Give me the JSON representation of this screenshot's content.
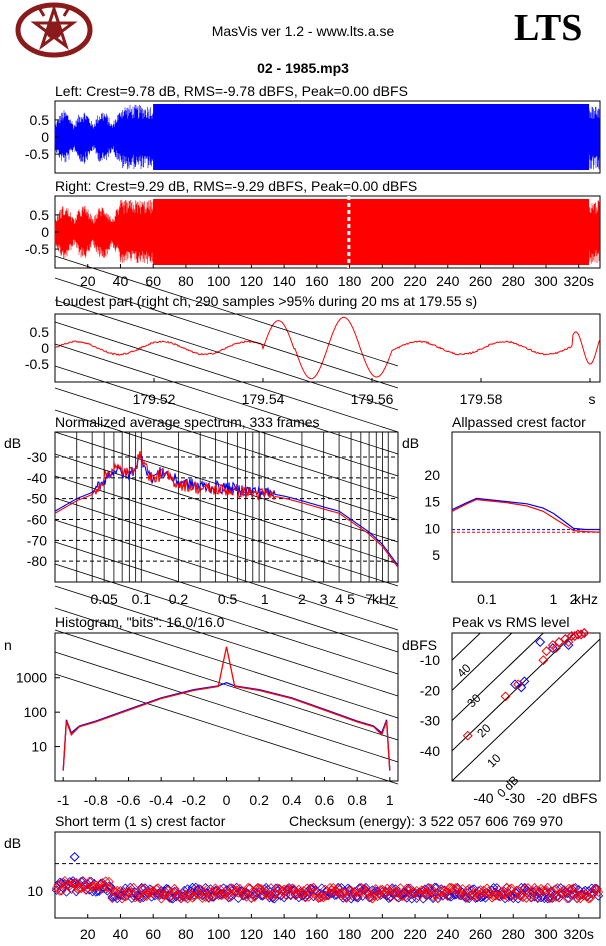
{
  "header": {
    "app_title": "MasVis ver 1.2 - www.lts.a.se",
    "brand": "LTS",
    "file_name": "02 - 1985.mp3",
    "logo": "pentagram-logo"
  },
  "chart_data": [
    {
      "id": "left",
      "type": "line",
      "title": "Left: Crest=9.78 dB, RMS=-9.78 dBFS, Peak=0.00 dBFS",
      "color": "#0000ff",
      "yticks": [
        "0.5",
        "0",
        "-0.5"
      ],
      "ylim": [
        -1,
        1
      ],
      "xlim": [
        0,
        333
      ]
    },
    {
      "id": "right",
      "type": "line",
      "title": "Right: Crest=9.29 dB, RMS=-9.29 dBFS, Peak=0.00 dBFS",
      "color": "#ff0000",
      "yticks": [
        "0.5",
        "0",
        "-0.5"
      ],
      "xticks": [
        "20",
        "40",
        "60",
        "80",
        "100",
        "120",
        "140",
        "160",
        "180",
        "200",
        "220",
        "240",
        "260",
        "280",
        "300",
        "320s"
      ],
      "ylim": [
        -1,
        1
      ],
      "xlim": [
        0,
        333
      ],
      "marker_x": 179.55
    },
    {
      "id": "loudest",
      "type": "line",
      "title": "Loudest part (right ch, 290 samples >95% during 20 ms at 179.55 s)",
      "color": "#ff0000",
      "yticks": [
        "0.5",
        "0",
        "-0.5"
      ],
      "xticks": [
        "179.52",
        "179.54",
        "179.56",
        "179.58",
        "s"
      ],
      "xlim": [
        179.5,
        179.6
      ],
      "ylim": [
        -1,
        1
      ]
    },
    {
      "id": "spectrum",
      "type": "line",
      "title": "Normalized average spectrum, 333 frames",
      "ylabel": "dB",
      "yticks": [
        "-30",
        "-40",
        "-50",
        "-60",
        "-70",
        "-80"
      ],
      "xticks": [
        "0.05",
        "0.1",
        "0.2",
        "0.5",
        "1",
        "2",
        "3",
        "4",
        "5",
        "7",
        "kHz"
      ],
      "ylim": [
        -90,
        -18
      ],
      "xlim_khz": [
        0.02,
        12
      ],
      "series": [
        {
          "color": "#0000ff",
          "x": [
            0.02,
            0.03,
            0.04,
            0.05,
            0.06,
            0.08,
            0.1,
            0.12,
            0.15,
            0.2,
            0.3,
            0.5,
            0.7,
            1,
            1.5,
            2,
            3,
            4,
            5,
            7,
            9,
            12
          ],
          "y": [
            -56,
            -50,
            -47,
            -41,
            -36,
            -39,
            -30,
            -40,
            -37,
            -42,
            -44,
            -45,
            -46,
            -47,
            -49,
            -51,
            -54,
            -56,
            -60,
            -66,
            -72,
            -82
          ]
        },
        {
          "color": "#ff0000",
          "x": [
            0.02,
            0.03,
            0.04,
            0.05,
            0.06,
            0.08,
            0.1,
            0.12,
            0.15,
            0.2,
            0.3,
            0.5,
            0.7,
            1,
            1.5,
            2,
            3,
            4,
            5,
            7,
            9,
            12
          ],
          "y": [
            -57,
            -51,
            -48,
            -40,
            -35,
            -38,
            -29,
            -41,
            -38,
            -43,
            -45,
            -46,
            -47,
            -48,
            -50,
            -52,
            -55,
            -57,
            -61,
            -67,
            -73,
            -83
          ]
        }
      ]
    },
    {
      "id": "crest",
      "type": "line",
      "title": "Allpassed crest factor",
      "ylabel": "dB",
      "yticks": [
        "20",
        "15",
        "10",
        "5"
      ],
      "xticks": [
        "0.1",
        "1",
        "2",
        "kHz"
      ],
      "ylim": [
        0,
        28
      ],
      "xlim_khz": [
        0.03,
        5
      ],
      "series": [
        {
          "color": "#0000ff",
          "x": [
            0.03,
            0.05,
            0.07,
            0.1,
            0.2,
            0.4,
            0.7,
            1,
            1.5,
            2,
            3,
            5
          ],
          "y": [
            13.5,
            14.8,
            15.6,
            15.4,
            15.0,
            14.6,
            13.8,
            12.8,
            11.2,
            10.0,
            9.8,
            9.8
          ],
          "ref": 9.78
        },
        {
          "color": "#ff0000",
          "x": [
            0.03,
            0.05,
            0.07,
            0.1,
            0.2,
            0.4,
            0.7,
            1,
            1.5,
            2,
            3,
            5
          ],
          "y": [
            13.2,
            14.6,
            15.4,
            15.2,
            14.8,
            14.2,
            13.2,
            12.0,
            10.6,
            9.6,
            9.4,
            9.3
          ],
          "ref": 9.29
        }
      ]
    },
    {
      "id": "histogram",
      "type": "line",
      "title": "Histogram, \"bits\": 16.0/16.0",
      "ylabel": "n",
      "yticks": [
        "1000",
        "100",
        "10"
      ],
      "xticks": [
        "-1",
        "-0.8",
        "-0.6",
        "-0.4",
        "-0.2",
        "0",
        "0.2",
        "0.4",
        "0.6",
        "0.8",
        "1"
      ],
      "xlim": [
        -1.05,
        1.05
      ],
      "log_y": true,
      "series": [
        {
          "color": "#0000ff",
          "x": [
            -1,
            -0.98,
            -0.95,
            -0.9,
            -0.8,
            -0.6,
            -0.4,
            -0.2,
            -0.05,
            0,
            0.05,
            0.2,
            0.4,
            0.6,
            0.8,
            0.9,
            0.95,
            0.98,
            1
          ],
          "y": [
            2,
            60,
            25,
            40,
            55,
            120,
            260,
            450,
            580,
            720,
            580,
            450,
            260,
            120,
            55,
            40,
            25,
            60,
            2
          ]
        },
        {
          "color": "#ff0000",
          "x": [
            -1,
            -0.98,
            -0.95,
            -0.9,
            -0.8,
            -0.6,
            -0.4,
            -0.2,
            -0.05,
            0,
            0.05,
            0.2,
            0.4,
            0.6,
            0.8,
            0.9,
            0.95,
            0.98,
            1
          ],
          "y": [
            2,
            55,
            22,
            38,
            52,
            115,
            250,
            430,
            560,
            8000,
            560,
            430,
            250,
            115,
            52,
            38,
            22,
            55,
            2
          ]
        }
      ]
    },
    {
      "id": "peak_vs_rms",
      "type": "scatter",
      "title": "Peak vs RMS level",
      "ylabel": "dBFS",
      "xlabel": "dBFS",
      "yticks": [
        "-10",
        "-20",
        "-30",
        "-40"
      ],
      "xticks": [
        "-40",
        "-30",
        "-20"
      ],
      "diag_labels": [
        "40",
        "30",
        "20",
        "10",
        "0 dB"
      ],
      "xlim": [
        -50,
        -3
      ],
      "ylim": [
        -50,
        -1
      ],
      "series": [
        {
          "color": "#0000ff",
          "x": [
            -30,
            -27,
            -22,
            -18,
            -16,
            -14,
            -12,
            -11,
            -10,
            -9,
            -8,
            -13,
            -28
          ],
          "y": [
            -18,
            -17,
            -4,
            -6,
            -4,
            -3,
            -2,
            -2,
            -1.5,
            -1.5,
            -1,
            -5,
            -19
          ]
        },
        {
          "color": "#ff0000",
          "x": [
            -45,
            -33,
            -21,
            -20,
            -18,
            -16,
            -14,
            -12,
            -11,
            -10,
            -9,
            -8,
            -17,
            -29,
            -13
          ],
          "y": [
            -35,
            -22,
            -10,
            -7,
            -5,
            -4,
            -3,
            -2,
            -2,
            -1.5,
            -1.5,
            -1,
            -6,
            -18,
            -4
          ]
        }
      ]
    },
    {
      "id": "short_term",
      "type": "scatter",
      "title": "Short term (1 s) crest factor",
      "checksum": "Checksum (energy):  3 522 057 606 769 970",
      "ylabel": "dB",
      "yticks": [
        "10"
      ],
      "xticks": [
        "20",
        "40",
        "60",
        "80",
        "100",
        "120",
        "140",
        "160",
        "180",
        "200",
        "220",
        "240",
        "260",
        "280",
        "300",
        "320s"
      ],
      "xlim": [
        0,
        333
      ],
      "ylim": [
        4,
        23
      ],
      "ref_line": 16,
      "series": [
        {
          "color": "#0000ff",
          "outlier_x": 12,
          "outlier_y": 17.5
        },
        {
          "color": "#ff0000"
        }
      ]
    }
  ]
}
